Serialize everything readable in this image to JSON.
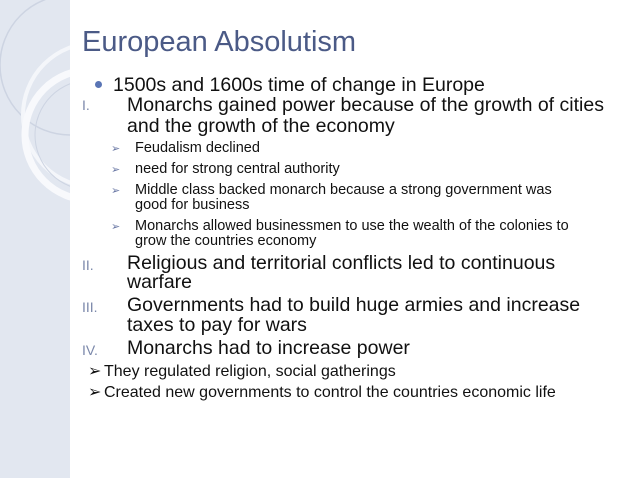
{
  "slide": {
    "title": "European Absolutism",
    "accent_color": "#4b5a86",
    "intro_bullet": "1500s and 1600s time of change in Europe",
    "points": [
      {
        "numeral": "I.",
        "lines": [
          "Monarchs gained power because of the growth of cities",
          "and the growth of the economy"
        ],
        "sub": [
          {
            "lines": [
              "Feudalism declined"
            ]
          },
          {
            "lines": [
              "need for strong central authority"
            ]
          },
          {
            "lines": [
              "Middle class backed monarch because a strong government was",
              "good for business"
            ]
          },
          {
            "lines": [
              "Monarchs allowed businessmen to use the wealth of the colonies to",
              "grow the countries economy"
            ]
          }
        ]
      },
      {
        "numeral": "II.",
        "lines": [
          "Religious and territorial conflicts led to continuous",
          "warfare"
        ]
      },
      {
        "numeral": "III.",
        "lines": [
          "Governments had to build huge armies and increase",
          "taxes to pay for wars"
        ]
      },
      {
        "numeral": "IV.",
        "lines": [
          "Monarchs had to increase power"
        ],
        "sub": [
          {
            "lines": [
              "They regulated religion, social gatherings"
            ]
          },
          {
            "lines": [
              "Created new governments to control the countries economic life"
            ]
          }
        ]
      }
    ],
    "bullet_arrow": "➢"
  }
}
